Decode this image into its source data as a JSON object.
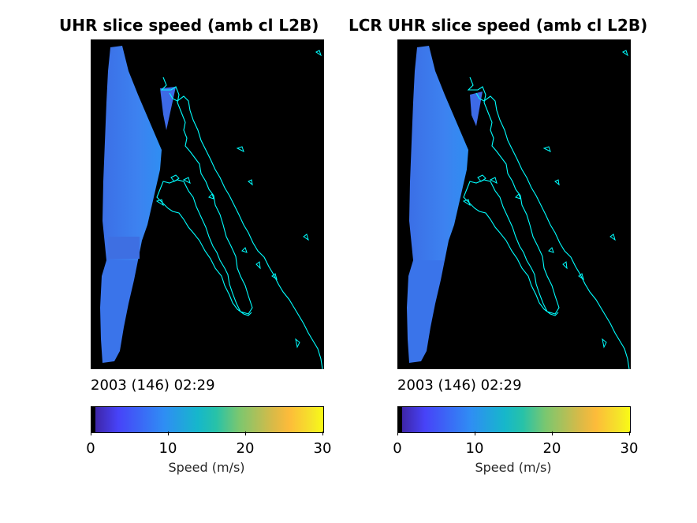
{
  "colors": {
    "background": "#000000",
    "coastline": "#00ffff",
    "swath": "#3c78ea"
  },
  "chart_data": [
    {
      "type": "heatmap",
      "title": "UHR slice speed (amb cl L2B)",
      "timestamp": "2003 (146) 02:29",
      "colorbar": {
        "label": "Speed (m/s)",
        "range": [
          0,
          30
        ],
        "ticks": [
          "0",
          "10",
          "20",
          "30"
        ],
        "colormap": "parula"
      },
      "dominant_speed_ms": 7
    },
    {
      "type": "heatmap",
      "title": "LCR UHR slice speed (amb cl L2B)",
      "timestamp": "2003 (146) 02:29",
      "colorbar": {
        "label": "Speed (m/s)",
        "range": [
          0,
          30
        ],
        "ticks": [
          "0",
          "10",
          "20",
          "30"
        ],
        "colormap": "parula"
      },
      "dominant_speed_ms": 7
    }
  ]
}
